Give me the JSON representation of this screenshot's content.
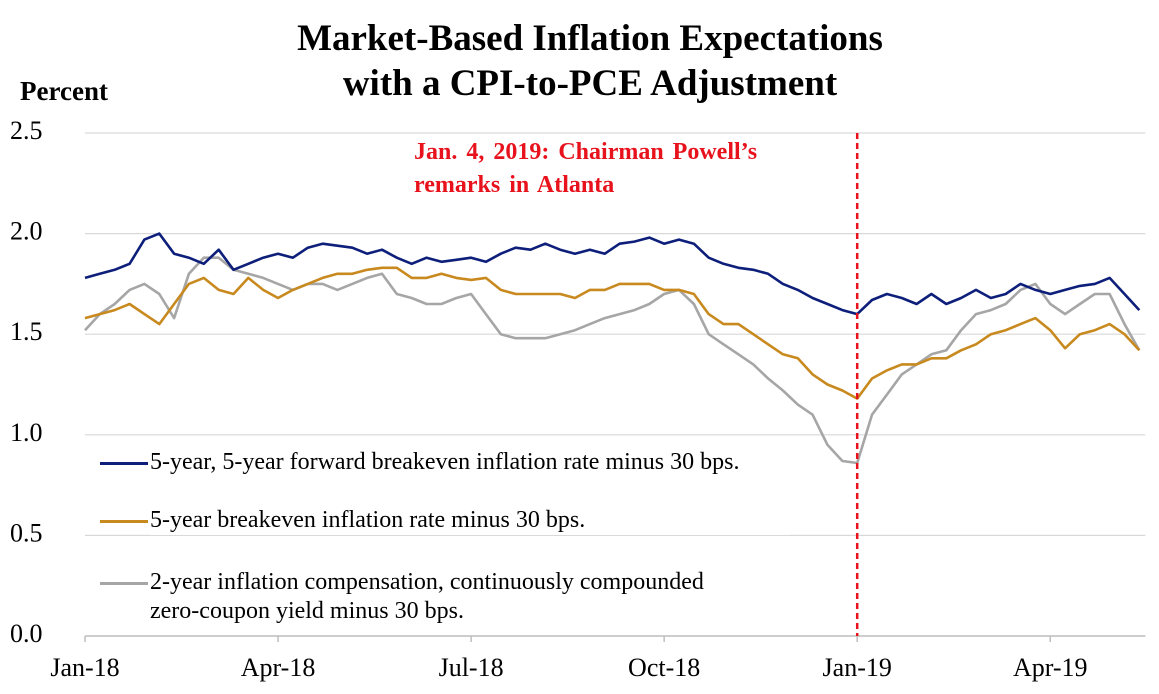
{
  "chart_data": {
    "type": "line",
    "title": "Market-Based Inflation Expectations with a CPI-to-PCE Adjustment",
    "y_label": "Percent",
    "annotation": {
      "text": [
        "Jan. 4, 2019: Chairman Powell’s",
        "remarks in Atlanta"
      ],
      "x": "Jan-19",
      "color": "#e8121c"
    },
    "categories": [
      "Jan-18",
      null,
      null,
      null,
      null,
      null,
      null,
      null,
      null,
      null,
      null,
      null,
      null,
      "Apr-18",
      null,
      null,
      null,
      null,
      null,
      null,
      null,
      null,
      null,
      null,
      null,
      null,
      "Jul-18",
      null,
      null,
      null,
      null,
      null,
      null,
      null,
      null,
      null,
      null,
      null,
      null,
      "Oct-18",
      null,
      null,
      null,
      null,
      null,
      null,
      null,
      null,
      null,
      null,
      null,
      null,
      "Jan-19",
      null,
      null,
      null,
      null,
      null,
      null,
      null,
      null,
      null,
      null,
      null,
      null,
      "Apr-19",
      null,
      null,
      null,
      null,
      null,
      null
    ],
    "series": [
      {
        "name": "5-year, 5-year forward breakeven inflation rate minus 30 bps.",
        "color": "#0d1f7a",
        "values": [
          1.78,
          1.8,
          1.82,
          1.85,
          1.97,
          2.0,
          1.9,
          1.88,
          1.85,
          1.92,
          1.82,
          1.85,
          1.88,
          1.9,
          1.88,
          1.93,
          1.95,
          1.94,
          1.93,
          1.9,
          1.92,
          1.88,
          1.85,
          1.88,
          1.86,
          1.87,
          1.88,
          1.86,
          1.9,
          1.93,
          1.92,
          1.95,
          1.92,
          1.9,
          1.92,
          1.9,
          1.95,
          1.96,
          1.98,
          1.95,
          1.97,
          1.95,
          1.88,
          1.85,
          1.83,
          1.82,
          1.8,
          1.75,
          1.72,
          1.68,
          1.65,
          1.62,
          1.6,
          1.67,
          1.7,
          1.68,
          1.65,
          1.7,
          1.65,
          1.68,
          1.72,
          1.68,
          1.7,
          1.75,
          1.72,
          1.7,
          1.72,
          1.74,
          1.75,
          1.78,
          1.7,
          1.62
        ]
      },
      {
        "name": "5-year breakeven inflation rate minus 30 bps.",
        "color": "#c8891e",
        "values": [
          1.58,
          1.6,
          1.62,
          1.65,
          1.6,
          1.55,
          1.65,
          1.75,
          1.78,
          1.72,
          1.7,
          1.78,
          1.72,
          1.68,
          1.72,
          1.75,
          1.78,
          1.8,
          1.8,
          1.82,
          1.83,
          1.83,
          1.78,
          1.78,
          1.8,
          1.78,
          1.77,
          1.78,
          1.72,
          1.7,
          1.7,
          1.7,
          1.7,
          1.68,
          1.72,
          1.72,
          1.75,
          1.75,
          1.75,
          1.72,
          1.72,
          1.7,
          1.6,
          1.55,
          1.55,
          1.5,
          1.45,
          1.4,
          1.38,
          1.3,
          1.25,
          1.22,
          1.18,
          1.28,
          1.32,
          1.35,
          1.35,
          1.38,
          1.38,
          1.42,
          1.45,
          1.5,
          1.52,
          1.55,
          1.58,
          1.52,
          1.43,
          1.5,
          1.52,
          1.55,
          1.5,
          1.42
        ]
      },
      {
        "name": "2-year inflation compensation, continuously compounded zero-coupon yield minus 30 bps.",
        "color": "#a6a6a6",
        "values": [
          1.52,
          1.6,
          1.65,
          1.72,
          1.75,
          1.7,
          1.58,
          1.8,
          1.88,
          1.88,
          1.82,
          1.8,
          1.78,
          1.75,
          1.72,
          1.75,
          1.75,
          1.72,
          1.75,
          1.78,
          1.8,
          1.7,
          1.68,
          1.65,
          1.65,
          1.68,
          1.7,
          1.6,
          1.5,
          1.48,
          1.48,
          1.48,
          1.5,
          1.52,
          1.55,
          1.58,
          1.6,
          1.62,
          1.65,
          1.7,
          1.72,
          1.65,
          1.5,
          1.45,
          1.4,
          1.35,
          1.28,
          1.22,
          1.15,
          1.1,
          0.95,
          0.87,
          0.86,
          1.1,
          1.2,
          1.3,
          1.35,
          1.4,
          1.42,
          1.52,
          1.6,
          1.62,
          1.65,
          1.72,
          1.75,
          1.65,
          1.6,
          1.65,
          1.7,
          1.7,
          1.55,
          1.42
        ]
      }
    ],
    "ylim": [
      0,
      2.5
    ],
    "yticks": [
      {
        "value": 0,
        "label": "0.0"
      },
      0.5,
      {
        "value": 1,
        "label": "1.0"
      },
      1.5,
      {
        "value": 2,
        "label": "2.0"
      },
      2.5
    ],
    "grid": true
  }
}
